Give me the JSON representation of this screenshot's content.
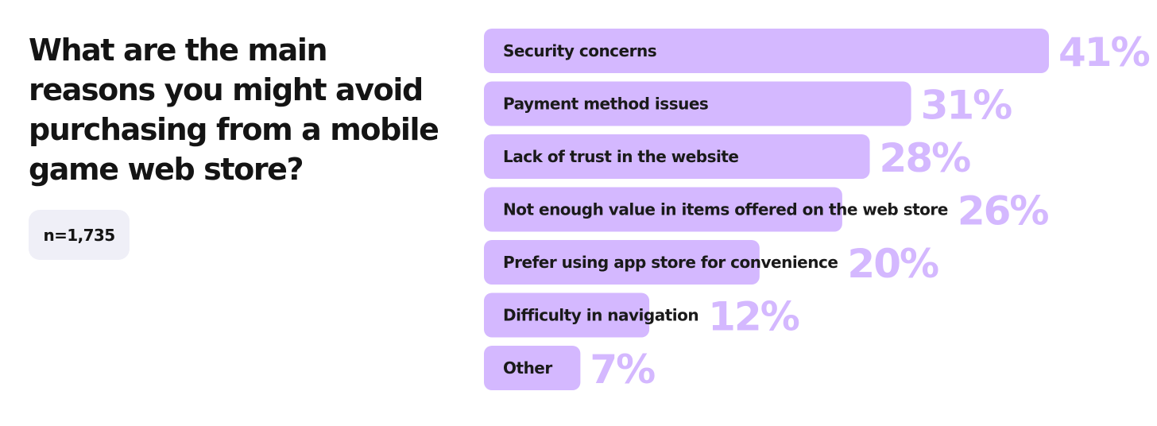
{
  "header": {
    "question": "What are the main reasons you might avoid purchasing from a mobile game web store?",
    "sample_size": "n=1,735"
  },
  "colors": {
    "bar": "#d4b8ff",
    "value_text": "#d4b8ff",
    "label_text": "#1a1a1a",
    "badge_bg": "#efeff7"
  },
  "chart_data": {
    "type": "bar",
    "orientation": "horizontal",
    "categories": [
      "Security concerns",
      "Payment method issues",
      "Lack of trust in the website",
      "Not enough value in items offered on the web store",
      "Prefer using app store for convenience",
      "Difficulty in navigation",
      "Other"
    ],
    "values": [
      41,
      31,
      28,
      26,
      20,
      12,
      7
    ],
    "value_labels": [
      "41%",
      "31%",
      "28%",
      "26%",
      "20%",
      "12%",
      "7%"
    ],
    "unit": "%",
    "xlim": [
      0,
      41
    ],
    "grid": false,
    "legend": "none"
  }
}
